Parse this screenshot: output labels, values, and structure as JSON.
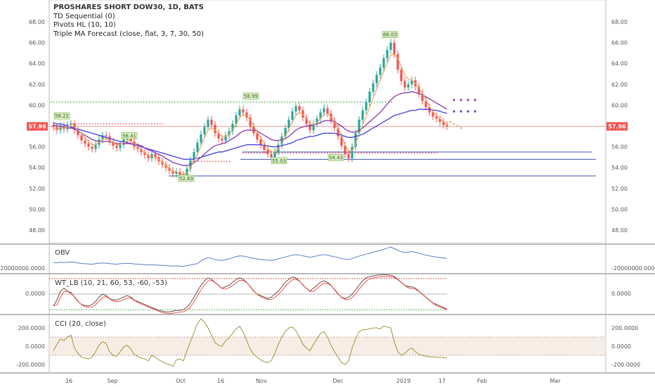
{
  "legend": {
    "title": "PROSHARES SHORT DOW30, 1D, BATS",
    "indicators": [
      "TD Sequential (0)",
      "Pivots HL (10, 10)",
      "Triple MA Forecast (close, flat, 3, 7, 30, 50)"
    ]
  },
  "last_price": "57.96",
  "pivot_labels": [
    "58.22",
    "56.41",
    "58.99",
    "52.63",
    "55.03",
    "54.43",
    "66.03"
  ],
  "panes": {
    "obv": {
      "title": "OBV",
      "tick": "-20000000.0000"
    },
    "wt": {
      "title": "WT_LB (10, 21, 60, 53, -60, -53)",
      "tick": "0.0000"
    },
    "cci": {
      "title": "CCI (20, close)",
      "ticks": [
        "200.0000",
        "0.0000",
        "-200.0000"
      ]
    }
  },
  "colors": {
    "up": "#26a69a",
    "down": "#ef5350",
    "ma_fast": "#f5a25d",
    "ma_mid": "#8e44ad",
    "ma_slow": "#4a4ae0",
    "cci": "#a0913c",
    "obv": "#5b7fc7"
  },
  "chart_data": {
    "type": "candlestick",
    "y_axis": {
      "min": 48,
      "max": 68,
      "ticks": [
        "68.00",
        "66.00",
        "64.00",
        "62.00",
        "60.00",
        "58.00",
        "56.00",
        "54.00",
        "52.00",
        "50.00",
        "48.00"
      ]
    },
    "x_labels": [
      "16",
      "Sep",
      "Oct",
      "16",
      "Nov",
      "Dec",
      "2019",
      "17",
      "Feb",
      "Mar"
    ],
    "close": [
      57.9,
      57.6,
      58.0,
      57.7,
      58.1,
      58.2,
      57.6,
      57.1,
      56.6,
      56.3,
      56.0,
      55.8,
      56.2,
      56.7,
      57.1,
      57.0,
      56.5,
      56.1,
      55.9,
      56.2,
      56.7,
      56.9,
      56.5,
      56.0,
      55.8,
      55.5,
      55.2,
      54.9,
      55.3,
      55.0,
      54.6,
      54.3,
      54.0,
      53.7,
      53.4,
      53.6,
      53.3,
      53.0,
      53.9,
      54.7,
      55.5,
      56.4,
      57.2,
      57.9,
      58.6,
      58.1,
      57.3,
      56.8,
      56.6,
      57.1,
      57.5,
      58.2,
      59.0,
      59.6,
      59.3,
      58.8,
      58.0,
      57.3,
      56.7,
      56.2,
      55.7,
      55.3,
      55.0,
      55.5,
      56.2,
      57.0,
      57.8,
      58.6,
      59.4,
      59.9,
      59.5,
      58.8,
      58.2,
      57.6,
      58.2,
      58.7,
      59.3,
      59.7,
      59.2,
      58.5,
      57.8,
      57.0,
      56.1,
      55.3,
      54.9,
      56.0,
      57.3,
      58.6,
      59.5,
      60.3,
      61.3,
      62.1,
      62.9,
      63.6,
      64.5,
      65.3,
      66.0,
      64.9,
      63.4,
      62.3,
      61.7,
      62.0,
      62.4,
      61.8,
      61.1,
      60.4,
      59.8,
      59.3,
      58.9,
      58.7,
      58.4,
      58.1,
      57.96
    ],
    "ma_fast": [
      57.8,
      57.7,
      57.8,
      57.8,
      57.9,
      58.0,
      57.9,
      57.6,
      57.3,
      56.9,
      56.5,
      56.2,
      56.2,
      56.4,
      56.7,
      56.8,
      56.6,
      56.4,
      56.2,
      56.2,
      56.4,
      56.6,
      56.6,
      56.3,
      56.0,
      55.7,
      55.4,
      55.1,
      55.1,
      55.0,
      54.8,
      54.5,
      54.2,
      53.9,
      53.6,
      53.6,
      53.5,
      53.3,
      53.5,
      54.0,
      54.6,
      55.3,
      56.1,
      56.9,
      57.6,
      57.8,
      57.6,
      57.3,
      57.0,
      57.0,
      57.2,
      57.6,
      58.2,
      58.8,
      59.1,
      59.0,
      58.6,
      58.0,
      57.4,
      56.9,
      56.4,
      55.9,
      55.5,
      55.5,
      55.8,
      56.3,
      57.0,
      57.7,
      58.4,
      59.0,
      59.3,
      59.1,
      58.7,
      58.2,
      58.1,
      58.3,
      58.7,
      59.1,
      59.2,
      58.9,
      58.4,
      57.8,
      57.0,
      56.2,
      55.6,
      55.6,
      56.3,
      57.2,
      58.1,
      58.9,
      59.8,
      60.7,
      61.6,
      62.4,
      63.2,
      64.0,
      64.8,
      64.9,
      64.5,
      63.7,
      62.9,
      62.5,
      62.4,
      62.1,
      61.7,
      61.1,
      60.5,
      59.9,
      59.4,
      59.0,
      58.7,
      58.4,
      58.2
    ],
    "ma_mid": [
      58.1,
      58.0,
      58.0,
      57.9,
      57.8,
      57.8,
      57.7,
      57.5,
      57.3,
      57.1,
      56.9,
      56.7,
      56.6,
      56.5,
      56.5,
      56.5,
      56.5,
      56.4,
      56.3,
      56.3,
      56.3,
      56.3,
      56.3,
      56.3,
      56.2,
      56.1,
      55.9,
      55.7,
      55.6,
      55.4,
      55.3,
      55.1,
      54.9,
      54.7,
      54.5,
      54.4,
      54.3,
      54.2,
      54.2,
      54.3,
      54.5,
      54.7,
      55.0,
      55.3,
      55.6,
      55.9,
      56.1,
      56.2,
      56.3,
      56.4,
      56.6,
      56.8,
      57.0,
      57.3,
      57.5,
      57.6,
      57.6,
      57.6,
      57.5,
      57.3,
      57.1,
      56.9,
      56.7,
      56.6,
      56.6,
      56.7,
      56.8,
      57.0,
      57.3,
      57.6,
      57.8,
      57.9,
      58.0,
      58.0,
      58.1,
      58.2,
      58.3,
      58.5,
      58.5,
      58.5,
      58.4,
      58.2,
      58.0,
      57.7,
      57.5,
      57.4,
      57.4,
      57.6,
      57.8,
      58.1,
      58.4,
      58.7,
      59.0,
      59.3,
      59.7,
      60.1,
      60.5,
      60.8,
      61.0,
      61.1,
      61.2,
      61.2,
      61.3,
      61.2,
      61.1,
      61.0,
      60.8,
      60.6,
      60.4,
      60.2,
      60.0,
      59.8,
      59.6
    ],
    "ma_slow": [
      58.3,
      58.2,
      58.2,
      58.1,
      58.0,
      57.9,
      57.8,
      57.7,
      57.6,
      57.5,
      57.4,
      57.3,
      57.2,
      57.1,
      57.0,
      56.9,
      56.8,
      56.7,
      56.6,
      56.5,
      56.5,
      56.4,
      56.3,
      56.2,
      56.1,
      56.0,
      55.9,
      55.8,
      55.7,
      55.6,
      55.5,
      55.4,
      55.3,
      55.2,
      55.1,
      55.0,
      54.9,
      54.8,
      54.8,
      54.8,
      54.8,
      54.9,
      55.0,
      55.1,
      55.2,
      55.3,
      55.4,
      55.5,
      55.5,
      55.6,
      55.7,
      55.8,
      55.9,
      56.0,
      56.1,
      56.2,
      56.2,
      56.2,
      56.2,
      56.2,
      56.1,
      56.1,
      56.0,
      56.0,
      56.0,
      56.1,
      56.2,
      56.3,
      56.4,
      56.6,
      56.7,
      56.8,
      56.9,
      57.0,
      57.0,
      57.1,
      57.2,
      57.3,
      57.3,
      57.3,
      57.3,
      57.2,
      57.1,
      57.0,
      56.9,
      56.9,
      57.0,
      57.1,
      57.2,
      57.4,
      57.6,
      57.8,
      58.0,
      58.2,
      58.4,
      58.6,
      58.8,
      59.0,
      59.1,
      59.2,
      59.3,
      59.4,
      59.5,
      59.5,
      59.6,
      59.6,
      59.6,
      59.6,
      59.5,
      59.5,
      59.4,
      59.3,
      59.2
    ],
    "support_lines": [
      55.5,
      54.8,
      53.2
    ],
    "resistance_dotted": [
      60.3,
      58.2,
      55.4,
      54.6
    ],
    "obv": [
      0.35,
      0.34,
      0.36,
      0.35,
      0.36,
      0.38,
      0.36,
      0.33,
      0.31,
      0.3,
      0.29,
      0.28,
      0.3,
      0.32,
      0.33,
      0.32,
      0.3,
      0.29,
      0.28,
      0.3,
      0.31,
      0.32,
      0.31,
      0.29,
      0.28,
      0.27,
      0.26,
      0.25,
      0.26,
      0.25,
      0.24,
      0.23,
      0.22,
      0.21,
      0.2,
      0.21,
      0.2,
      0.19,
      0.22,
      0.25,
      0.28,
      0.3,
      0.42,
      0.5,
      0.55,
      0.52,
      0.48,
      0.45,
      0.44,
      0.47,
      0.5,
      0.55,
      0.6,
      0.63,
      0.62,
      0.59,
      0.55,
      0.52,
      0.5,
      0.48,
      0.46,
      0.45,
      0.44,
      0.46,
      0.5,
      0.55,
      0.58,
      0.62,
      0.66,
      0.68,
      0.66,
      0.63,
      0.6,
      0.57,
      0.6,
      0.63,
      0.66,
      0.68,
      0.66,
      0.62,
      0.59,
      0.56,
      0.52,
      0.49,
      0.48,
      0.52,
      0.57,
      0.62,
      0.66,
      0.7,
      0.74,
      0.78,
      0.82,
      0.86,
      0.9,
      0.95,
      1.0,
      0.93,
      0.86,
      0.8,
      0.77,
      0.79,
      0.81,
      0.78,
      0.74,
      0.7,
      0.66,
      0.63,
      0.6,
      0.58,
      0.56,
      0.54,
      0.52
    ],
    "wt": [
      -40,
      -20,
      10,
      20,
      10,
      5,
      -10,
      -25,
      -35,
      -38,
      -40,
      -35,
      -25,
      -10,
      0,
      -5,
      -15,
      -20,
      -20,
      -15,
      -10,
      -5,
      -10,
      -20,
      -25,
      -30,
      -35,
      -40,
      -45,
      -50,
      -55,
      -58,
      -60,
      -60,
      -58,
      -55,
      -55,
      -52,
      -45,
      -30,
      -10,
      10,
      30,
      45,
      55,
      50,
      40,
      30,
      20,
      25,
      30,
      40,
      50,
      55,
      50,
      40,
      25,
      10,
      0,
      -5,
      -10,
      -15,
      -10,
      0,
      10,
      25,
      40,
      50,
      58,
      55,
      45,
      30,
      20,
      10,
      20,
      30,
      40,
      45,
      40,
      30,
      15,
      0,
      -10,
      -15,
      -10,
      0,
      15,
      30,
      45,
      55,
      60,
      62,
      64,
      65,
      66,
      65,
      64,
      60,
      50,
      40,
      30,
      25,
      25,
      20,
      10,
      0,
      -10,
      -20,
      -30,
      -35,
      -40,
      -45,
      -50
    ],
    "cci": [
      -50,
      20,
      80,
      60,
      100,
      120,
      -20,
      -80,
      -120,
      -130,
      -140,
      -120,
      -60,
      10,
      50,
      30,
      -60,
      -100,
      -110,
      -60,
      -10,
      10,
      -30,
      -90,
      -110,
      -130,
      -140,
      -160,
      -100,
      -120,
      -150,
      -170,
      -190,
      -200,
      -220,
      -150,
      -140,
      -160,
      -50,
      50,
      150,
      250,
      300,
      260,
      200,
      120,
      40,
      10,
      0,
      60,
      90,
      140,
      190,
      220,
      150,
      60,
      -30,
      -90,
      -120,
      -150,
      -170,
      -180,
      -160,
      -80,
      20,
      100,
      160,
      200,
      210,
      170,
      100,
      20,
      -20,
      -50,
      20,
      80,
      140,
      160,
      100,
      10,
      -60,
      -120,
      -180,
      -200,
      -160,
      -20,
      80,
      160,
      180,
      180,
      190,
      200,
      200,
      190,
      220,
      210,
      200,
      50,
      -60,
      -100,
      -80,
      -40,
      -20,
      -60,
      -90,
      -100,
      -110,
      -115,
      -118,
      -120,
      -122,
      -125,
      -130
    ]
  }
}
